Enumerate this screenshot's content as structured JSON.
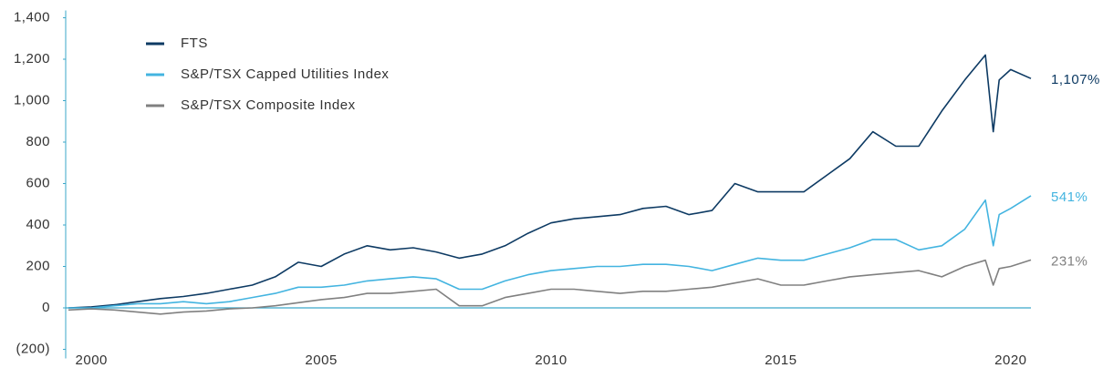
{
  "chart_data": {
    "type": "line",
    "x": [
      1999.5,
      2000,
      2000.5,
      2001,
      2001.5,
      2002,
      2002.5,
      2003,
      2003.5,
      2004,
      2004.5,
      2005,
      2005.5,
      2006,
      2006.5,
      2007,
      2007.5,
      2008,
      2008.5,
      2009,
      2009.5,
      2010,
      2010.5,
      2011,
      2011.5,
      2012,
      2012.5,
      2013,
      2013.5,
      2014,
      2014.5,
      2015,
      2015.5,
      2016,
      2016.5,
      2017,
      2017.5,
      2018,
      2018.5,
      2019,
      2019.45,
      2019.62,
      2019.75,
      2020,
      2020.44
    ],
    "series": [
      {
        "name": "FTS",
        "color": "#0d3a63",
        "end_label": "1,107%",
        "values": [
          0,
          5,
          15,
          30,
          45,
          55,
          70,
          90,
          110,
          150,
          220,
          200,
          260,
          300,
          280,
          290,
          270,
          240,
          260,
          300,
          360,
          410,
          430,
          440,
          450,
          480,
          490,
          450,
          470,
          600,
          560,
          560,
          560,
          640,
          720,
          850,
          780,
          780,
          950,
          1100,
          1220,
          850,
          1100,
          1150,
          1107
        ]
      },
      {
        "name": "S&P/TSX Capped Utilities Index",
        "color": "#43b4e0",
        "end_label": "541%",
        "values": [
          0,
          0,
          10,
          20,
          20,
          30,
          20,
          30,
          50,
          70,
          100,
          100,
          110,
          130,
          140,
          150,
          140,
          90,
          90,
          130,
          160,
          180,
          190,
          200,
          200,
          210,
          210,
          200,
          180,
          210,
          240,
          230,
          230,
          260,
          290,
          330,
          330,
          280,
          300,
          380,
          520,
          300,
          450,
          480,
          541
        ]
      },
      {
        "name": "S&P/TSX Composite Index",
        "color": "#808080",
        "end_label": "231%",
        "values": [
          -10,
          -5,
          -10,
          -20,
          -30,
          -20,
          -15,
          -5,
          0,
          10,
          25,
          40,
          50,
          70,
          70,
          80,
          90,
          10,
          10,
          50,
          70,
          90,
          90,
          80,
          70,
          80,
          80,
          90,
          100,
          120,
          140,
          110,
          110,
          130,
          150,
          160,
          170,
          180,
          150,
          200,
          230,
          110,
          190,
          200,
          231
        ]
      }
    ],
    "xlim": [
      1999.44,
      2020.44
    ],
    "xticks": [
      2000,
      2005,
      2010,
      2015,
      2020
    ],
    "ylim": [
      -200,
      1400
    ],
    "yticks": [
      {
        "value": -200,
        "label": "(200)"
      },
      0,
      200,
      400,
      600,
      800,
      {
        "value": 1000,
        "label": "1,000"
      },
      {
        "value": 1200,
        "label": "1,200"
      },
      {
        "value": 1400,
        "label": "1,400"
      }
    ],
    "legend": "upper left"
  }
}
